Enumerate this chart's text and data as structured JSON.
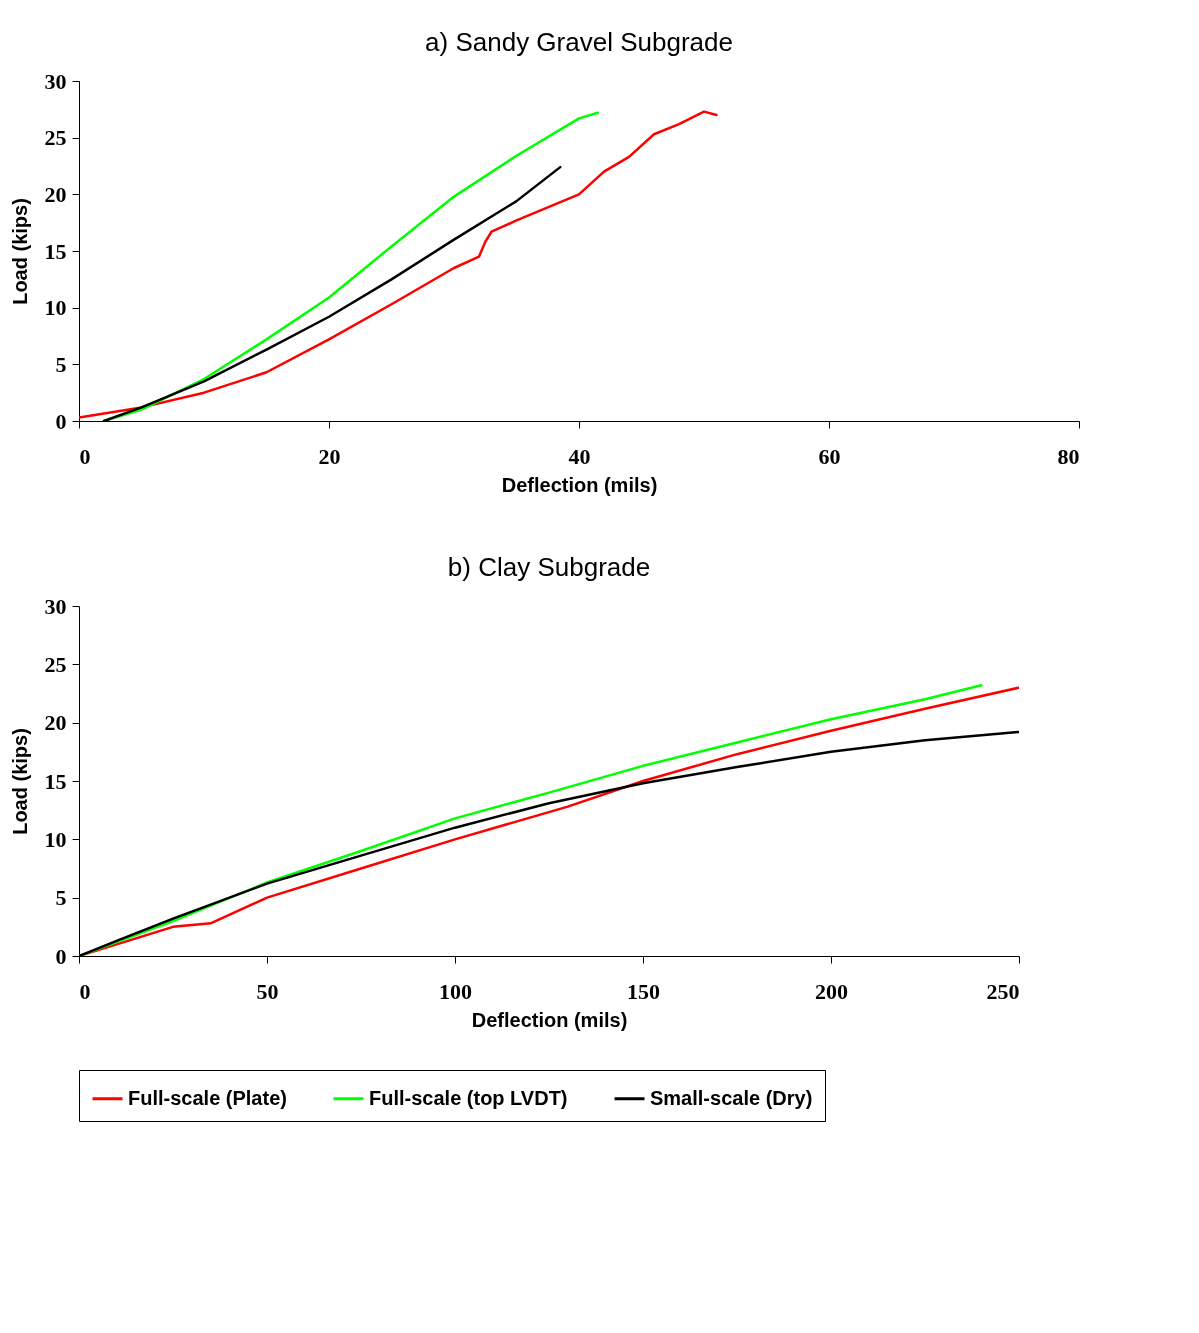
{
  "chart_data": [
    {
      "type": "line",
      "title": "a) Sandy Gravel Subgrade",
      "xlabel": "Deflection (mils)",
      "ylabel": "Load (kips)",
      "xlim": [
        0,
        80
      ],
      "xticks": [
        0,
        20,
        40,
        60,
        80
      ],
      "ylim": [
        0,
        30
      ],
      "yticks": [
        0,
        5,
        10,
        15,
        20,
        25,
        30
      ],
      "grid": false,
      "legend": "bottom",
      "series": [
        {
          "name": "Full-scale (Plate)",
          "color": "#ff0000",
          "x": [
            0,
            5,
            10,
            15,
            20,
            25,
            30,
            32,
            32.5,
            33,
            35,
            40,
            42,
            44,
            46,
            48,
            50,
            51
          ],
          "values": [
            0.3,
            1.2,
            2.5,
            4.3,
            7.2,
            10.3,
            13.5,
            14.5,
            15.8,
            16.7,
            17.7,
            20,
            22,
            23.3,
            25.3,
            26.2,
            27.3,
            27
          ]
        },
        {
          "name": "Full-scale (top LVDT)",
          "color": "#00ff00",
          "x": [
            2,
            5,
            10,
            15,
            20,
            25,
            30,
            35,
            40,
            41.5
          ],
          "values": [
            0,
            1,
            3.7,
            7.2,
            10.9,
            15.4,
            19.8,
            23.4,
            26.7,
            27.2
          ]
        },
        {
          "name": "Small-scale (Dry)",
          "color": "#000000",
          "x": [
            2,
            5,
            10,
            15,
            20,
            25,
            30,
            35,
            38.5
          ],
          "values": [
            0,
            1.2,
            3.5,
            6.3,
            9.2,
            12.5,
            16,
            19.4,
            22.4
          ]
        }
      ]
    },
    {
      "type": "line",
      "title": "b) Clay Subgrade",
      "xlabel": "Deflection (mils)",
      "ylabel": "Load (kips)",
      "xlim": [
        0,
        250
      ],
      "xticks": [
        0,
        50,
        100,
        150,
        200,
        250
      ],
      "ylim": [
        0,
        30
      ],
      "yticks": [
        0,
        5,
        10,
        15,
        20,
        25,
        30
      ],
      "grid": false,
      "legend": "bottom",
      "series": [
        {
          "name": "Full-scale (Plate)",
          "color": "#ff0000",
          "x": [
            0,
            10,
            25,
            35,
            50,
            75,
            100,
            130,
            150,
            175,
            200,
            225,
            250
          ],
          "values": [
            0,
            1,
            2.5,
            2.8,
            5,
            7.5,
            10,
            12.8,
            15,
            17.3,
            19.3,
            21.2,
            23
          ]
        },
        {
          "name": "Full-scale (top LVDT)",
          "color": "#00ff00",
          "x": [
            0,
            10,
            25,
            50,
            75,
            100,
            125,
            150,
            175,
            200,
            225,
            240
          ],
          "values": [
            0,
            1.2,
            3,
            6.3,
            9,
            11.8,
            14,
            16.3,
            18.3,
            20.3,
            22,
            23.2
          ]
        },
        {
          "name": "Small-scale (Dry)",
          "color": "#000000",
          "x": [
            0,
            10,
            25,
            50,
            75,
            100,
            125,
            150,
            175,
            200,
            225,
            250
          ],
          "values": [
            0,
            1.3,
            3.2,
            6.2,
            8.6,
            11,
            13.1,
            14.8,
            16.2,
            17.5,
            18.5,
            19.2
          ]
        }
      ]
    }
  ]
}
